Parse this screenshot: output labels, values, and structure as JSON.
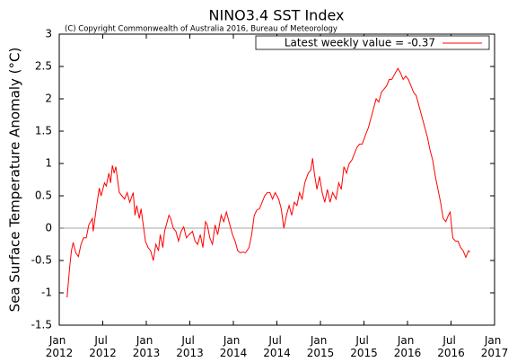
{
  "chart_data": {
    "type": "line",
    "title": "NINO3.4 SST Index",
    "subtitle": "(C) Copyright Commonwealth of Australia 2016, Bureau of Meteorology",
    "y_label": "Sea Surface Temperature Anomaly (°C)",
    "xlim": [
      2012,
      2017
    ],
    "ylim": [
      -1.5,
      3
    ],
    "xticks": [
      {
        "value": 2012,
        "label": "Jan 2012"
      },
      {
        "value": 2012.5,
        "label": "Jul 2012"
      },
      {
        "value": 2013,
        "label": "Jan 2013"
      },
      {
        "value": 2013.5,
        "label": "Jul 2013"
      },
      {
        "value": 2014,
        "label": "Jan 2014"
      },
      {
        "value": 2014.5,
        "label": "Jul 2014"
      },
      {
        "value": 2015,
        "label": "Jan 2015"
      },
      {
        "value": 2015.5,
        "label": "Jul 2015"
      },
      {
        "value": 2016,
        "label": "Jan 2016"
      },
      {
        "value": 2016.5,
        "label": "Jul 2016"
      },
      {
        "value": 2017,
        "label": "Jan 2017"
      }
    ],
    "yticks": [
      -1.5,
      -1,
      -0.5,
      0,
      0.5,
      1,
      1.5,
      2,
      2.5,
      3
    ],
    "legend": "upper right",
    "x": [
      2012.09,
      2012.12,
      2012.14,
      2012.16,
      2012.19,
      2012.22,
      2012.25,
      2012.28,
      2012.31,
      2012.34,
      2012.36,
      2012.38,
      2012.39,
      2012.41,
      2012.43,
      2012.46,
      2012.48,
      2012.52,
      2012.54,
      2012.57,
      2012.59,
      2012.61,
      2012.63,
      2012.65,
      2012.67,
      2012.69,
      2012.72,
      2012.75,
      2012.78,
      2012.81,
      2012.85,
      2012.87,
      2012.89,
      2012.92,
      2012.94,
      2012.96,
      2012.99,
      2013.02,
      2013.05,
      2013.08,
      2013.11,
      2013.14,
      2013.16,
      2013.19,
      2013.21,
      2013.24,
      2013.26,
      2013.28,
      2013.31,
      2013.34,
      2013.37,
      2013.4,
      2013.43,
      2013.46,
      2013.49,
      2013.53,
      2013.56,
      2013.59,
      2013.62,
      2013.65,
      2013.68,
      2013.7,
      2013.73,
      2013.76,
      2013.79,
      2013.82,
      2013.86,
      2013.89,
      2013.92,
      2013.94,
      2013.96,
      2013.99,
      2014.02,
      2014.05,
      2014.08,
      2014.11,
      2014.14,
      2014.18,
      2014.21,
      2014.24,
      2014.27,
      2014.3,
      2014.33,
      2014.36,
      2014.39,
      2014.42,
      2014.45,
      2014.48,
      2014.52,
      2014.55,
      2014.58,
      2014.61,
      2014.64,
      2014.67,
      2014.7,
      2014.73,
      2014.76,
      2014.79,
      2014.82,
      2014.86,
      2014.89,
      2014.91,
      2014.93,
      2014.96,
      2014.99,
      2015.02,
      2015.05,
      2015.08,
      2015.11,
      2015.14,
      2015.18,
      2015.21,
      2015.24,
      2015.27,
      2015.3,
      2015.33,
      2015.36,
      2015.39,
      2015.42,
      2015.45,
      2015.48,
      2015.52,
      2015.55,
      2015.58,
      2015.61,
      2015.64,
      2015.67,
      2015.7,
      2015.73,
      2015.76,
      2015.79,
      2015.82,
      2015.86,
      2015.89,
      2015.92,
      2015.95,
      2015.98,
      2016.01,
      2016.04,
      2016.07,
      2016.1,
      2016.13,
      2016.16,
      2016.2,
      2016.23,
      2016.26,
      2016.29,
      2016.32,
      2016.35,
      2016.38,
      2016.41,
      2016.44,
      2016.47,
      2016.49,
      2016.52,
      2016.55,
      2016.58,
      2016.61,
      2016.64,
      2016.67,
      2016.7,
      2016.72
    ],
    "series": [
      {
        "name": "Latest weekly value = -0.37",
        "color": "#ff0000",
        "values": [
          -1.07,
          -0.6,
          -0.35,
          -0.22,
          -0.38,
          -0.44,
          -0.25,
          -0.15,
          -0.15,
          0.05,
          0.1,
          0.15,
          -0.05,
          0.15,
          0.35,
          0.62,
          0.5,
          0.7,
          0.65,
          0.85,
          0.7,
          0.97,
          0.85,
          0.95,
          0.75,
          0.55,
          0.5,
          0.45,
          0.55,
          0.4,
          0.55,
          0.2,
          0.35,
          0.15,
          0.3,
          0.1,
          -0.2,
          -0.3,
          -0.35,
          -0.5,
          -0.25,
          -0.35,
          -0.1,
          -0.3,
          -0.05,
          0.1,
          0.2,
          0.15,
          0.0,
          -0.05,
          -0.2,
          -0.05,
          0.02,
          -0.15,
          -0.1,
          -0.05,
          -0.2,
          -0.25,
          -0.1,
          -0.3,
          0.1,
          0.05,
          -0.15,
          -0.25,
          0.05,
          -0.1,
          0.2,
          0.1,
          0.25,
          0.15,
          0.05,
          -0.1,
          -0.2,
          -0.35,
          -0.38,
          -0.37,
          -0.38,
          -0.3,
          -0.1,
          0.2,
          0.28,
          0.3,
          0.4,
          0.5,
          0.55,
          0.55,
          0.45,
          0.55,
          0.45,
          0.3,
          0.0,
          0.2,
          0.35,
          0.2,
          0.4,
          0.35,
          0.55,
          0.45,
          0.7,
          0.85,
          0.9,
          1.08,
          0.85,
          0.6,
          0.8,
          0.55,
          0.4,
          0.6,
          0.4,
          0.55,
          0.45,
          0.7,
          0.6,
          0.95,
          0.85,
          1.0,
          1.05,
          1.15,
          1.25,
          1.3,
          1.3,
          1.45,
          1.55,
          1.7,
          1.85,
          2.0,
          1.95,
          2.1,
          2.15,
          2.2,
          2.3,
          2.3,
          2.4,
          2.47,
          2.4,
          2.3,
          2.35,
          2.3,
          2.2,
          2.1,
          2.05,
          1.9,
          1.75,
          1.55,
          1.4,
          1.2,
          1.05,
          0.8,
          0.6,
          0.4,
          0.15,
          0.1,
          0.2,
          0.25,
          -0.15,
          -0.2,
          -0.2,
          -0.3,
          -0.35,
          -0.45,
          -0.35,
          -0.37
        ]
      }
    ]
  }
}
